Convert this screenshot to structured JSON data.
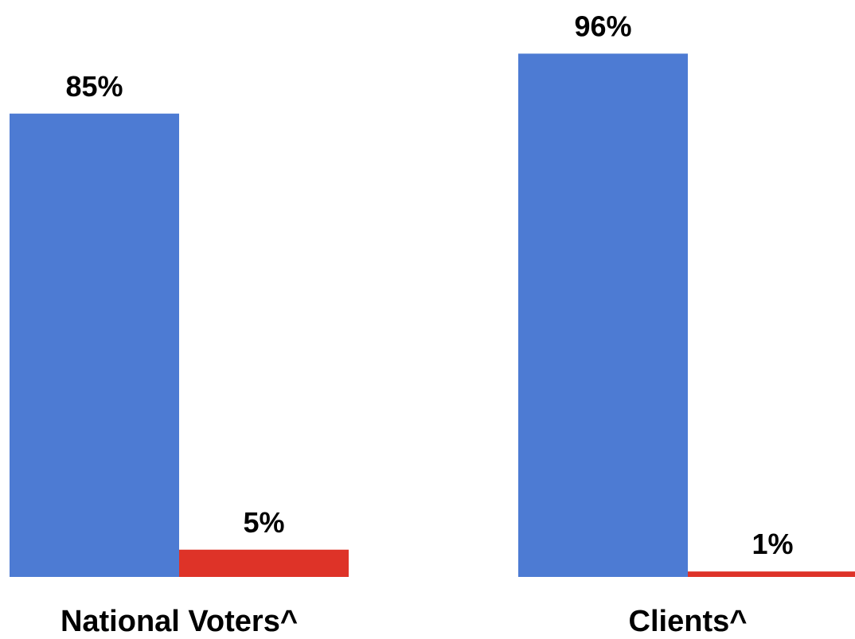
{
  "chart_data": {
    "type": "bar",
    "categories": [
      "National Voters^",
      "Clients^"
    ],
    "series": [
      {
        "values": [
          85,
          96
        ],
        "labels": [
          "85%",
          "96%"
        ],
        "color": "#4D7BD3"
      },
      {
        "values": [
          5,
          1
        ],
        "labels": [
          "5%",
          "1%"
        ],
        "color": "#DE3328"
      }
    ],
    "title": "",
    "xlabel": "",
    "ylabel": "",
    "ylim": [
      0,
      100
    ],
    "grid": false,
    "legend": "none"
  }
}
